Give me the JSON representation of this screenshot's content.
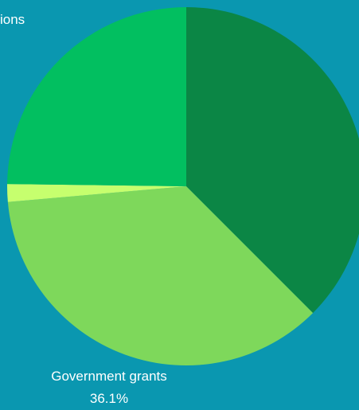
{
  "chart_data": {
    "type": "pie",
    "title": "",
    "start_angle_deg": 0,
    "direction": "clockwise",
    "slices": [
      {
        "label": "",
        "value": 37.5,
        "color": "#0b8645",
        "label_text": ""
      },
      {
        "label": "Government grants",
        "value": 36.1,
        "color": "#7ed85b",
        "label_text": "Government grants",
        "value_text": "36.1%"
      },
      {
        "label": "",
        "value": 1.6,
        "color": "#c6ff6e",
        "label_text": ""
      },
      {
        "label": "",
        "value": 24.8,
        "color": "#02bf60",
        "label_text": "ions"
      }
    ]
  }
}
